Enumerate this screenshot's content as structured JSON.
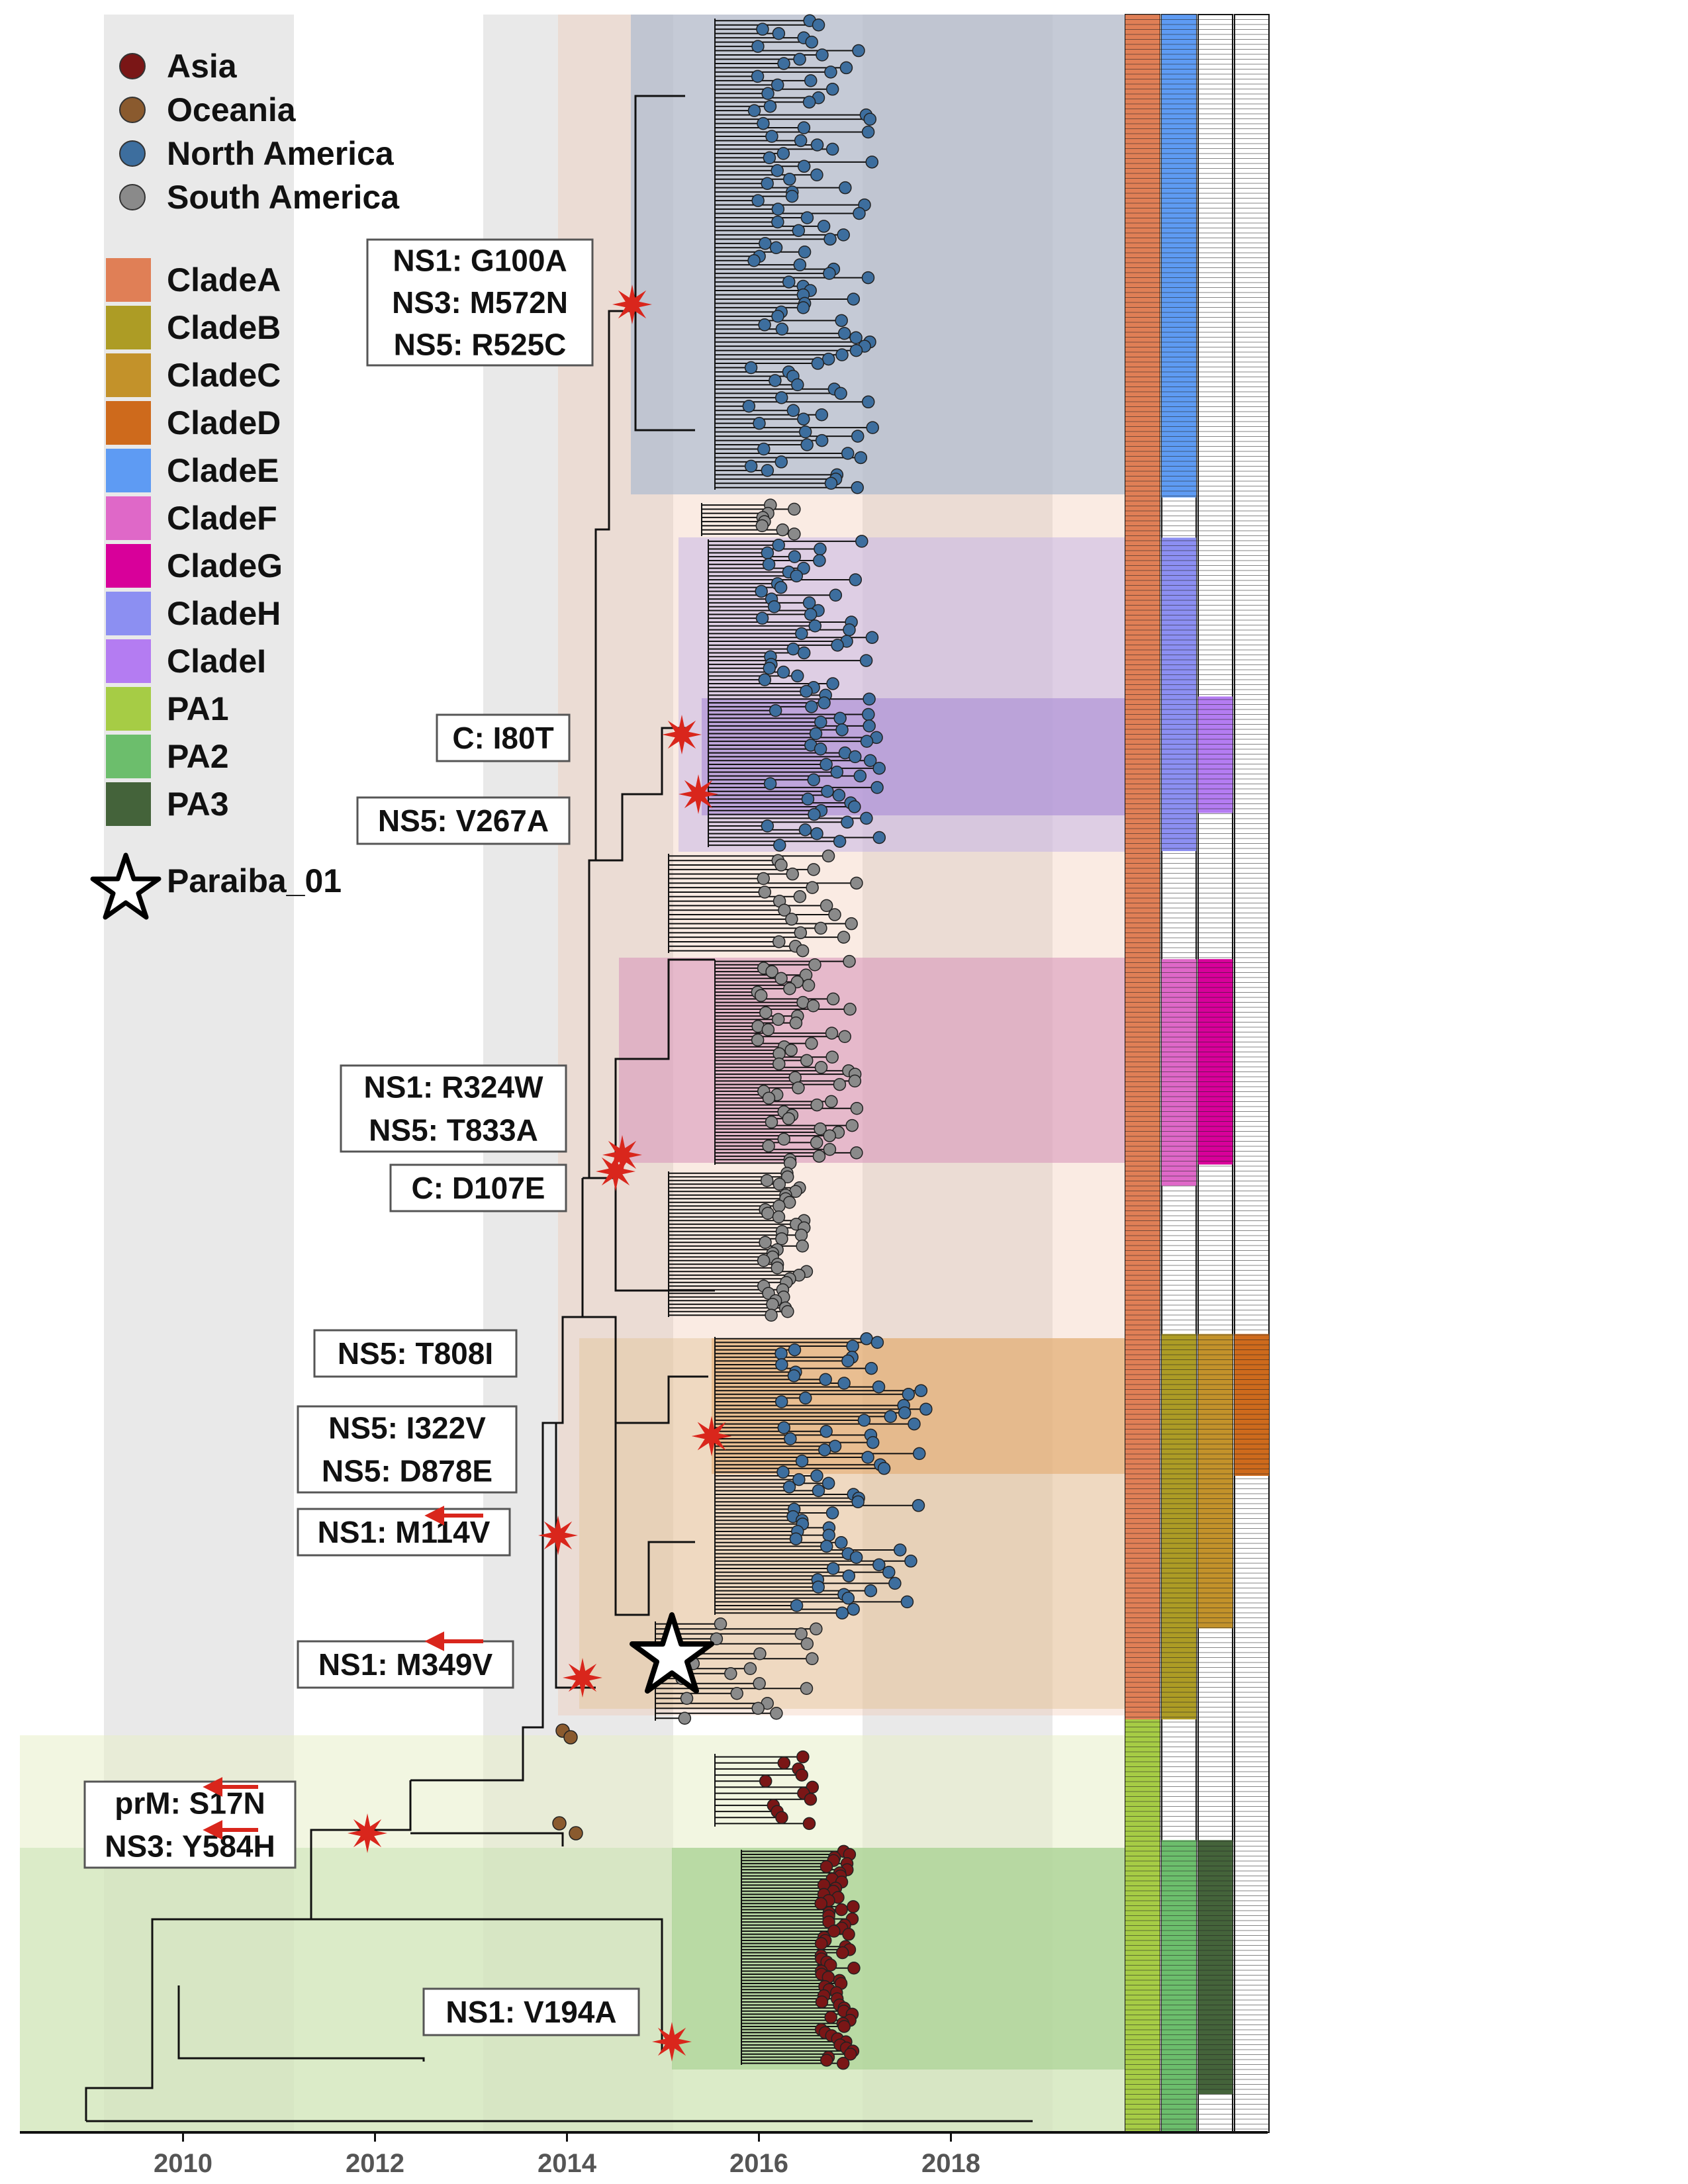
{
  "legend": {
    "regions": [
      {
        "label": "Asia",
        "color": "#7a1616"
      },
      {
        "label": "Oceania",
        "color": "#8a5a2e"
      },
      {
        "label": "North America",
        "color": "#3d6e9e"
      },
      {
        "label": "South America",
        "color": "#8a8a8a"
      }
    ],
    "clades": [
      {
        "label": "CladeA",
        "color": "#e07f56"
      },
      {
        "label": "CladeB",
        "color": "#ad9c25"
      },
      {
        "label": "CladeC",
        "color": "#c3922a"
      },
      {
        "label": "CladeD",
        "color": "#ce6a1c"
      },
      {
        "label": "CladeE",
        "color": "#5e9bf3"
      },
      {
        "label": "CladeF",
        "color": "#df68c8"
      },
      {
        "label": "CladeG",
        "color": "#d8009a"
      },
      {
        "label": "CladeH",
        "color": "#8c8ff2"
      },
      {
        "label": "CladeI",
        "color": "#b47cf2"
      },
      {
        "label": "PA1",
        "color": "#a6cc45"
      },
      {
        "label": "PA2",
        "color": "#6cbe6c"
      },
      {
        "label": "PA3",
        "color": "#44633a"
      }
    ],
    "star_label": "Paraiba_01"
  },
  "x_axis": {
    "min": 2008.3,
    "max": 2021.3,
    "ticks": [
      {
        "value": 2010,
        "label": "2010"
      },
      {
        "value": 2012,
        "label": "2012"
      },
      {
        "value": 2014,
        "label": "2014"
      },
      {
        "value": 2016,
        "label": "2016"
      },
      {
        "value": 2018,
        "label": "2018"
      }
    ]
  },
  "mutations": [
    {
      "lines": [
        "NS1: G100A",
        "NS3: M572N",
        "NS5: R525C"
      ],
      "year": 2014.6
    },
    {
      "lines": [
        "C: I80T"
      ],
      "year": 2015.0
    },
    {
      "lines": [
        "NS5: V267A"
      ],
      "year": 2015.2
    },
    {
      "lines": [
        "NS1: R324W",
        "NS5: T833A"
      ],
      "year": 2014.3
    },
    {
      "lines": [
        "C: D107E"
      ],
      "year": 2014.3
    },
    {
      "lines": [
        "NS5: T808I"
      ],
      "year": 2015.4
    },
    {
      "lines": [
        "NS5: I322V",
        "NS5: D878E"
      ],
      "year": 2015.4
    },
    {
      "lines": [
        "NS1: M114V"
      ],
      "year": 2013.8
    },
    {
      "lines": [
        "NS1: M349V"
      ],
      "year": 2014.0
    },
    {
      "lines": [
        "prM: S17N",
        "NS3: Y584H"
      ],
      "year": 2011.7
    },
    {
      "lines": [
        "NS1: V194A"
      ],
      "year": 2014.9
    }
  ],
  "color_bars": [
    {
      "column": 1,
      "segments": [
        {
          "clade": "CladeA",
          "from": 0.0,
          "to": 0.805
        },
        {
          "clade": "PA1",
          "from": 0.805,
          "to": 1.0
        }
      ]
    },
    {
      "column": 2,
      "segments": [
        {
          "clade": "CladeE",
          "from": 0.0,
          "to": 0.228
        },
        {
          "clade": "CladeH",
          "from": 0.247,
          "to": 0.395
        },
        {
          "clade": "CladeF",
          "from": 0.446,
          "to": 0.553
        },
        {
          "clade": "CladeB",
          "from": 0.623,
          "to": 0.805
        },
        {
          "clade": "PA2",
          "from": 0.862,
          "to": 1.0
        }
      ]
    },
    {
      "column": 3,
      "segments": [
        {
          "clade": "CladeI",
          "from": 0.322,
          "to": 0.377
        },
        {
          "clade": "CladeG",
          "from": 0.446,
          "to": 0.543
        },
        {
          "clade": "CladeC",
          "from": 0.623,
          "to": 0.762
        },
        {
          "clade": "PA3",
          "from": 0.862,
          "to": 0.982
        }
      ]
    },
    {
      "column": 4,
      "segments": [
        {
          "clade": "CladeD",
          "from": 0.623,
          "to": 0.69
        }
      ]
    }
  ]
}
